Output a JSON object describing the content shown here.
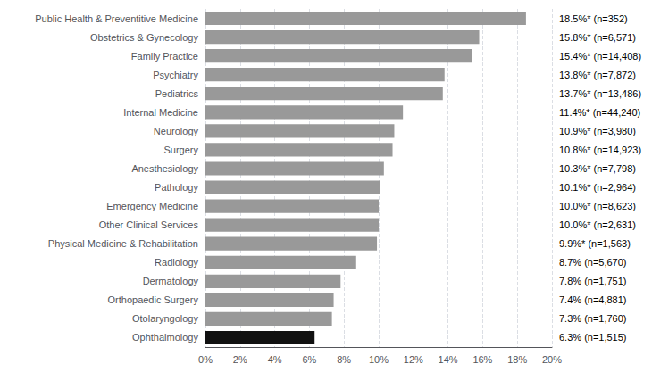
{
  "chart_data": {
    "type": "bar",
    "orientation": "horizontal",
    "categories": [
      "Public Health & Preventitive Medicine",
      "Obstetrics & Gynecology",
      "Family Practice",
      "Psychiatry",
      "Pediatrics",
      "Internal Medicine",
      "Neurology",
      "Surgery",
      "Anesthesiology",
      "Pathology",
      "Emergency Medicine",
      "Other Clinical Services",
      "Physical Medicine & Rehabilitation",
      "Radiology",
      "Dermatology",
      "Orthopaedic Surgery",
      "Otolaryngology",
      "Ophthalmology"
    ],
    "values": [
      18.5,
      15.8,
      15.4,
      13.8,
      13.7,
      11.4,
      10.9,
      10.8,
      10.3,
      10.1,
      10.0,
      10.0,
      9.9,
      8.7,
      7.8,
      7.4,
      7.3,
      6.3
    ],
    "value_labels": [
      "18.5%* (n=352)",
      "15.8%* (n=6,571)",
      "15.4%* (n=14,408)",
      "13.8%* (n=7,872)",
      "13.7%* (n=13,486)",
      "11.4%* (n=44,240)",
      "10.9%* (n=3,980)",
      "10.8%* (n=14,923)",
      "10.3%* (n=7,798)",
      "10.1%* (n=2,964)",
      "10.0%* (n=8,623)",
      "10.0%* (n=2,631)",
      "9.9%* (n=1,563)",
      "8.7% (n=5,670)",
      "7.8% (n=1,751)",
      "7.4% (n=4,881)",
      "7.3% (n=1,760)",
      "6.3% (n=1,515)"
    ],
    "data_labels": true,
    "colors": [
      "#999999",
      "#999999",
      "#999999",
      "#999999",
      "#999999",
      "#999999",
      "#999999",
      "#999999",
      "#999999",
      "#999999",
      "#999999",
      "#999999",
      "#999999",
      "#999999",
      "#999999",
      "#999999",
      "#999999",
      "#111111"
    ],
    "xlim": [
      0,
      20
    ],
    "xticks": [
      {
        "value": 0,
        "label": "0%"
      },
      {
        "value": 2,
        "label": "2%"
      },
      {
        "value": 4,
        "label": "4%"
      },
      {
        "value": 6,
        "label": "6%"
      },
      {
        "value": 8,
        "label": "8%"
      },
      {
        "value": 10,
        "label": "10%"
      },
      {
        "value": 12,
        "label": "12%"
      },
      {
        "value": 14,
        "label": "14%"
      },
      {
        "value": 16,
        "label": "16%"
      },
      {
        "value": 18,
        "label": "18%"
      },
      {
        "value": 20,
        "label": "20%"
      }
    ],
    "grid": true
  }
}
